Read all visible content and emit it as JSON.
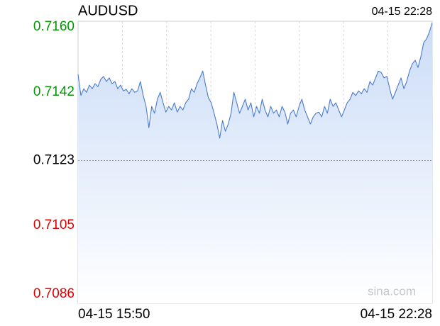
{
  "chart_data": {
    "type": "line",
    "title": "AUDUSD",
    "time": "04-15 22:28",
    "watermark": "sina.com",
    "color": "#4a7bcc",
    "fill_color": "#c9dbf7",
    "up_color": "#009900",
    "down_color": "#e00000",
    "reference": 0.7123,
    "ylim": [
      0.70834,
      0.71616
    ],
    "yticks": [
      {
        "value": 0.716,
        "label": "0.7160"
      },
      0.7142,
      0.7123,
      0.7105,
      0.7086
    ],
    "categories": [
      "04-15 15:50",
      null,
      null,
      null,
      null,
      null,
      null,
      null,
      null,
      null,
      null,
      null,
      null,
      null,
      null,
      null,
      null,
      null,
      null,
      null,
      null,
      null,
      null,
      null,
      null,
      null,
      null,
      null,
      null,
      null,
      null,
      null,
      null,
      null,
      null,
      null,
      null,
      null,
      null,
      null,
      null,
      null,
      null,
      null,
      null,
      null,
      null,
      null,
      null,
      null,
      null,
      null,
      null,
      null,
      null,
      null,
      null,
      null,
      null,
      null,
      null,
      null,
      null,
      null,
      null,
      null,
      null,
      null,
      null,
      null,
      null,
      null,
      null,
      null,
      null,
      null,
      null,
      null,
      null,
      null,
      null,
      null,
      null,
      null,
      null,
      null,
      null,
      null,
      null,
      null,
      null,
      null,
      null,
      null,
      null,
      null,
      null,
      null,
      null,
      null,
      null,
      null,
      null,
      null,
      null,
      null,
      null,
      null,
      null,
      null,
      null,
      null,
      null,
      null,
      null,
      null,
      null,
      null,
      null,
      null,
      null,
      null,
      null,
      null,
      null,
      "04-15 22:28"
    ],
    "values": [
      0.71469,
      0.7141,
      0.71429,
      0.71419,
      0.71439,
      0.71429,
      0.71443,
      0.71435,
      0.71455,
      0.71463,
      0.71449,
      0.71459,
      0.71443,
      0.71449,
      0.71429,
      0.71439,
      0.71423,
      0.71427,
      0.71415,
      0.71429,
      0.71419,
      0.71423,
      0.71449,
      0.7141,
      0.7138,
      0.71321,
      0.7138,
      0.71361,
      0.714,
      0.71419,
      0.7139,
      0.71364,
      0.7138,
      0.7137,
      0.7139,
      0.71364,
      0.7138,
      0.7137,
      0.7139,
      0.714,
      0.71429,
      0.71419,
      0.71443,
      0.71459,
      0.71478,
      0.71439,
      0.71404,
      0.7139,
      0.71361,
      0.71331,
      0.71292,
      0.71341,
      0.71311,
      0.71331,
      0.71361,
      0.71419,
      0.7139,
      0.71361,
      0.7138,
      0.714,
      0.7137,
      0.7139,
      0.71351,
      0.7138,
      0.71361,
      0.714,
      0.7137,
      0.71351,
      0.7138,
      0.71361,
      0.7137,
      0.71351,
      0.7138,
      0.71364,
      0.71331,
      0.71361,
      0.7137,
      0.71351,
      0.7138,
      0.714,
      0.7137,
      0.71351,
      0.71331,
      0.71351,
      0.71361,
      0.71364,
      0.71351,
      0.7138,
      0.71361,
      0.714,
      0.7138,
      0.7139,
      0.7137,
      0.71351,
      0.7137,
      0.7139,
      0.714,
      0.71419,
      0.7141,
      0.71423,
      0.71415,
      0.71429,
      0.71419,
      0.71449,
      0.71439,
      0.71459,
      0.71478,
      0.71474,
      0.71459,
      0.71463,
      0.71429,
      0.714,
      0.71419,
      0.71439,
      0.71459,
      0.71429,
      0.71449,
      0.71478,
      0.71498,
      0.71508,
      0.71488,
      0.71518,
      0.71557,
      0.71567,
      0.71586,
      0.71612
    ]
  }
}
